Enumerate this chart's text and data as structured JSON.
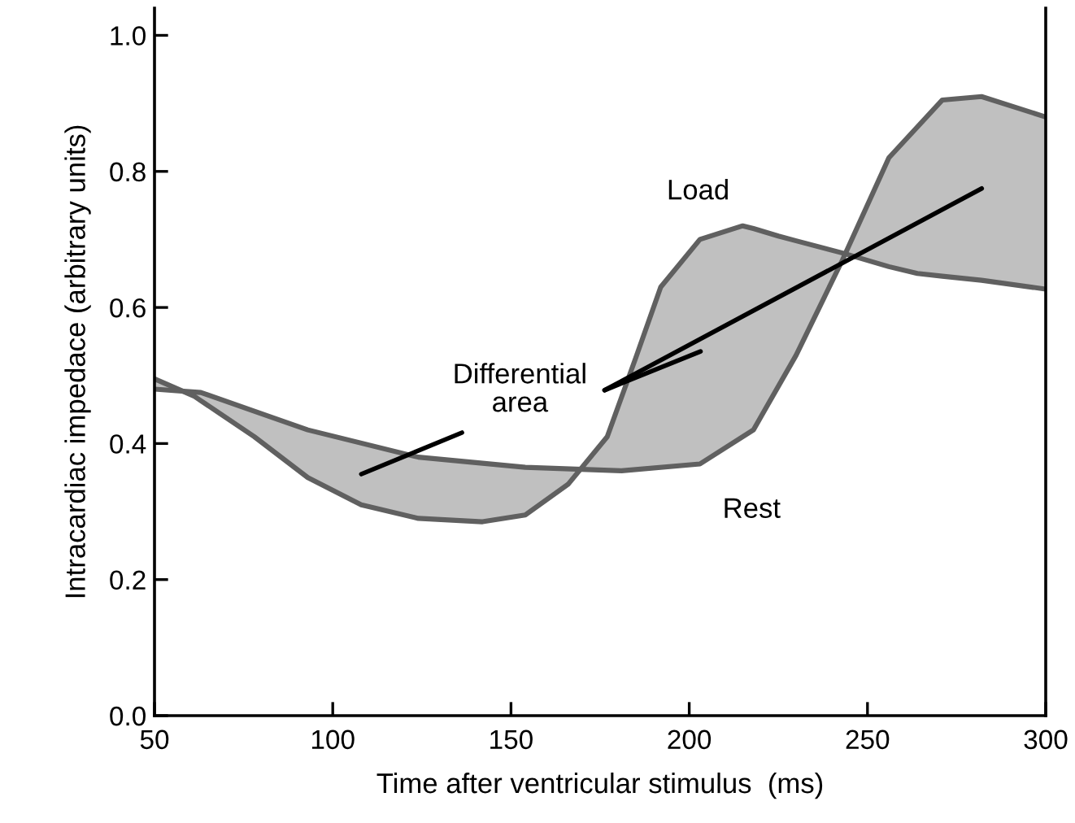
{
  "chart_data": {
    "type": "line",
    "xlabel": "Time after ventricular stimulus  (ms)",
    "ylabel": "Intracardiac impedace (arbitrary units)",
    "xlim": [
      50,
      300
    ],
    "ylim": [
      0,
      1.04
    ],
    "xticks": [
      50,
      100,
      150,
      200,
      250,
      300
    ],
    "yticks": [
      {
        "value": 0,
        "label": "0.0"
      },
      {
        "value": 0.2,
        "label": "0.2"
      },
      {
        "value": 0.4,
        "label": "0.4"
      },
      {
        "value": 0.6,
        "label": "0.6"
      },
      {
        "value": 0.8,
        "label": "0.8"
      },
      {
        "value": 1.0,
        "label": "1.0"
      }
    ],
    "grid": false,
    "legend": false,
    "series": [
      {
        "name": "Load",
        "color": "#606060",
        "x": [
          50,
          61,
          63,
          78,
          93,
          108,
          124,
          142,
          154,
          166,
          177,
          181,
          185,
          192,
          203,
          215,
          218,
          225,
          230,
          243,
          256,
          264,
          271,
          282,
          300
        ],
        "values": [
          0.495,
          0.47,
          0.463,
          0.41,
          0.35,
          0.31,
          0.29,
          0.285,
          0.295,
          0.34,
          0.41,
          0.468,
          0.526,
          0.63,
          0.7,
          0.72,
          0.716,
          0.705,
          0.698,
          0.68,
          0.66,
          0.65,
          0.646,
          0.64,
          0.627
        ],
        "upper": [
          0.495,
          0.47,
          0.463,
          0.41,
          0.35,
          0.31,
          0.29,
          0.285,
          0.295,
          0.34,
          0.41,
          0.468,
          0.526,
          0.63,
          0.7,
          0.72,
          0.716,
          0.705,
          0.698,
          0.68,
          0.66,
          0.65,
          0.646,
          0.64,
          0.627
        ],
        "lower": [
          0.48,
          0.476,
          0.475,
          0.448,
          0.42,
          0.4,
          0.38,
          0.371,
          0.365,
          0.363,
          0.361,
          0.36,
          0.362,
          0.365,
          0.37,
          0.41,
          0.42,
          0.484,
          0.53,
          0.67,
          0.82,
          0.865,
          0.905,
          0.91,
          0.88
        ]
      },
      {
        "name": "Rest",
        "color": "#606060",
        "x": [
          50,
          63,
          93,
          124,
          154,
          181,
          203,
          218,
          230,
          243,
          256,
          271,
          282,
          300
        ],
        "values": [
          0.48,
          0.475,
          0.42,
          0.38,
          0.365,
          0.36,
          0.37,
          0.42,
          0.53,
          0.67,
          0.82,
          0.905,
          0.91,
          0.88
        ]
      }
    ],
    "annotations": [
      "Differential\narea"
    ]
  }
}
